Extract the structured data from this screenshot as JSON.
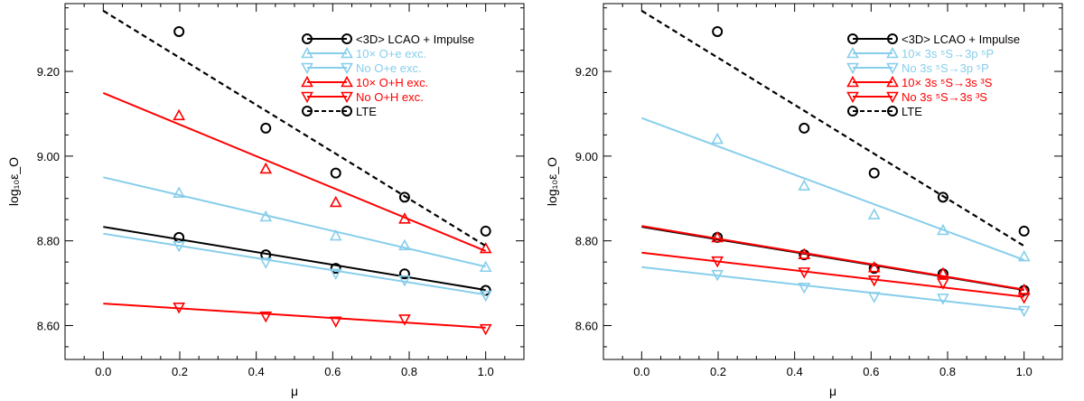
{
  "chart_data": [
    {
      "type": "line",
      "xlabel": "μ",
      "ylabel": "log₁₀ε_O",
      "xlim": [
        -0.1,
        1.1
      ],
      "ylim": [
        8.52,
        9.36
      ],
      "xticks": [
        0.0,
        0.2,
        0.4,
        0.6,
        0.8,
        1.0
      ],
      "xtick_labels": [
        "0.0",
        "0.2",
        "0.4",
        "0.6",
        "0.8",
        "1.0"
      ],
      "yticks": [
        8.6,
        8.8,
        9.0,
        9.2
      ],
      "ytick_labels": [
        "8.60",
        "8.80",
        "9.00",
        "9.20"
      ],
      "series": [
        {
          "name": "<3D> LCAO + Impulse",
          "color": "#000000",
          "marker": "circle",
          "line_style": "solid",
          "points": {
            "x": [
              0.198,
              0.425,
              0.608,
              0.788,
              1.0
            ],
            "y": [
              8.808,
              8.767,
              8.735,
              8.722,
              8.683
            ]
          },
          "fit": {
            "x": [
              0.0,
              1.0
            ],
            "y": [
              8.833,
              8.684
            ]
          }
        },
        {
          "name": "10× O+e exc.",
          "color": "#87ceeb",
          "marker": "triangle-up",
          "line_style": "solid",
          "points": {
            "x": [
              0.198,
              0.425,
              0.608,
              0.788,
              1.0
            ],
            "y": [
              8.913,
              8.857,
              8.812,
              8.789,
              8.738
            ]
          },
          "fit": {
            "x": [
              0.0,
              1.0
            ],
            "y": [
              8.95,
              8.739
            ]
          }
        },
        {
          "name": "No O+e exc.",
          "color": "#87ceeb",
          "marker": "triangle-down",
          "line_style": "solid",
          "points": {
            "x": [
              0.198,
              0.425,
              0.608,
              0.788,
              1.0
            ],
            "y": [
              8.788,
              8.749,
              8.723,
              8.707,
              8.671
            ]
          },
          "fit": {
            "x": [
              0.0,
              1.0
            ],
            "y": [
              8.817,
              8.673
            ]
          }
        },
        {
          "name": "10× O+H exc.",
          "color": "#ff0000",
          "marker": "triangle-up",
          "line_style": "solid",
          "points": {
            "x": [
              0.198,
              0.425,
              0.608,
              0.788,
              1.0
            ],
            "y": [
              9.096,
              8.97,
              8.891,
              8.852,
              8.782
            ]
          },
          "fit": {
            "x": [
              0.0,
              1.0
            ],
            "y": [
              9.149,
              8.776
            ]
          }
        },
        {
          "name": "No O+H exc.",
          "color": "#ff0000",
          "marker": "triangle-down",
          "line_style": "solid",
          "points": {
            "x": [
              0.198,
              0.425,
              0.608,
              0.788,
              1.0
            ],
            "y": [
              8.643,
              8.622,
              8.61,
              8.615,
              8.592
            ]
          },
          "fit": {
            "x": [
              0.0,
              1.0
            ],
            "y": [
              8.652,
              8.595
            ]
          }
        },
        {
          "name": "LTE",
          "color": "#000000",
          "marker": "circle",
          "line_style": "dashed",
          "points": {
            "x": [
              0.198,
              0.425,
              0.608,
              0.788,
              1.0
            ],
            "y": [
              9.294,
              9.066,
              8.96,
              8.903,
              8.823
            ]
          },
          "fit": {
            "x": [
              0.0,
              1.0
            ],
            "y": [
              9.343,
              8.788
            ]
          }
        }
      ]
    },
    {
      "type": "line",
      "xlabel": "μ",
      "ylabel": "log₁₀ε_O",
      "xlim": [
        -0.1,
        1.1
      ],
      "ylim": [
        8.52,
        9.36
      ],
      "xticks": [
        0.0,
        0.2,
        0.4,
        0.6,
        0.8,
        1.0
      ],
      "xtick_labels": [
        "0.0",
        "0.2",
        "0.4",
        "0.6",
        "0.8",
        "1.0"
      ],
      "yticks": [
        8.6,
        8.8,
        9.0,
        9.2
      ],
      "ytick_labels": [
        "8.60",
        "8.80",
        "9.00",
        "9.20"
      ],
      "series": [
        {
          "name": "<3D> LCAO + Impulse",
          "color": "#000000",
          "marker": "circle",
          "line_style": "solid",
          "points": {
            "x": [
              0.198,
              0.425,
              0.608,
              0.788,
              1.0
            ],
            "y": [
              8.808,
              8.767,
              8.735,
              8.722,
              8.683
            ]
          },
          "fit": {
            "x": [
              0.0,
              1.0
            ],
            "y": [
              8.833,
              8.684
            ]
          }
        },
        {
          "name": "10× 3s ⁵S→3p ⁵P",
          "color": "#87ceeb",
          "marker": "triangle-up",
          "line_style": "solid",
          "points": {
            "x": [
              0.198,
              0.425,
              0.608,
              0.788,
              1.0
            ],
            "y": [
              9.04,
              8.93,
              8.862,
              8.825,
              8.763
            ]
          },
          "fit": {
            "x": [
              0.0,
              1.0
            ],
            "y": [
              9.09,
              8.755
            ]
          }
        },
        {
          "name": "No 3s ⁵S→3p ⁵P",
          "color": "#87ceeb",
          "marker": "triangle-down",
          "line_style": "solid",
          "points": {
            "x": [
              0.198,
              0.425,
              0.608,
              0.788,
              1.0
            ],
            "y": [
              8.72,
              8.69,
              8.668,
              8.664,
              8.635
            ]
          },
          "fit": {
            "x": [
              0.0,
              1.0
            ],
            "y": [
              8.738,
              8.637
            ]
          }
        },
        {
          "name": "10× 3s ⁵S→3s ³S",
          "color": "#ff0000",
          "marker": "triangle-up",
          "line_style": "solid",
          "points": {
            "x": [
              0.198,
              0.425,
              0.608,
              0.788,
              1.0
            ],
            "y": [
              8.808,
              8.768,
              8.737,
              8.723,
              8.684
            ]
          },
          "fit": {
            "x": [
              0.0,
              1.0
            ],
            "y": [
              8.835,
              8.685
            ]
          }
        },
        {
          "name": "No 3s ⁵S→3s ³S",
          "color": "#ff0000",
          "marker": "triangle-down",
          "line_style": "solid",
          "points": {
            "x": [
              0.198,
              0.425,
              0.608,
              0.788,
              1.0
            ],
            "y": [
              8.752,
              8.726,
              8.707,
              8.7,
              8.666
            ]
          },
          "fit": {
            "x": [
              0.0,
              1.0
            ],
            "y": [
              8.772,
              8.668
            ]
          }
        },
        {
          "name": "LTE",
          "color": "#000000",
          "marker": "circle",
          "line_style": "dashed",
          "points": {
            "x": [
              0.198,
              0.425,
              0.608,
              0.788,
              1.0
            ],
            "y": [
              9.294,
              9.066,
              8.96,
              8.903,
              8.823
            ]
          },
          "fit": {
            "x": [
              0.0,
              1.0
            ],
            "y": [
              9.343,
              8.788
            ]
          }
        }
      ]
    }
  ]
}
